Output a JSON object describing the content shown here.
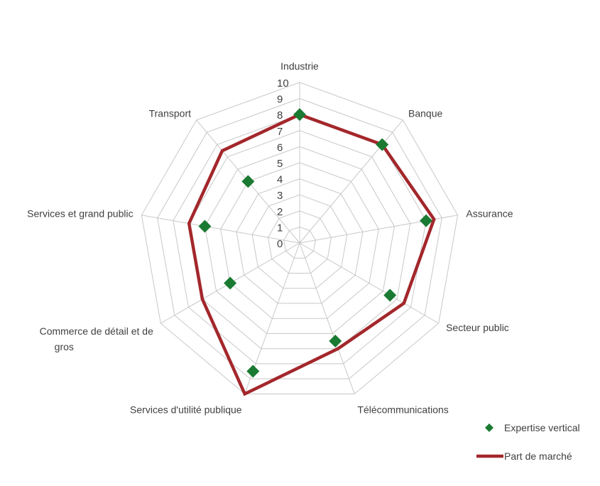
{
  "chart_data": {
    "type": "radar",
    "categories": [
      "Industrie",
      "Banque",
      "Assurance",
      "Secteur public",
      "Télécommunications",
      "Services d'utilité publique",
      "Commerce de détail et de gros",
      "Services et grand public",
      "Transport"
    ],
    "category_lines": [
      [
        "Industrie"
      ],
      [
        "Banque"
      ],
      [
        "Assurance"
      ],
      [
        "Secteur public"
      ],
      [
        "Télécommunications"
      ],
      [
        "Services d'utilité publique"
      ],
      [
        "Commerce de détail et de",
        "gros"
      ],
      [
        "Services et grand public"
      ],
      [
        "Transport"
      ]
    ],
    "r_ticks": [
      "0",
      "1",
      "2",
      "3",
      "4",
      "5",
      "6",
      "7",
      "8",
      "9",
      "10"
    ],
    "rlim": [
      0,
      10
    ],
    "grid": true,
    "legend_position": "bottom-right",
    "series": [
      {
        "name": "Expertise vertical",
        "style": "markers",
        "color": "#1a7a32",
        "marker": "diamond",
        "values": [
          8,
          8,
          8,
          6.5,
          6.5,
          8.5,
          5,
          6,
          5
        ]
      },
      {
        "name": "Part de marché",
        "style": "line",
        "color": "#a3272b",
        "values": [
          8,
          8,
          8.5,
          7.5,
          7,
          10,
          7,
          7,
          7.5
        ]
      }
    ]
  },
  "colors": {
    "grid": "#c8c8c8",
    "text": "#404040"
  }
}
